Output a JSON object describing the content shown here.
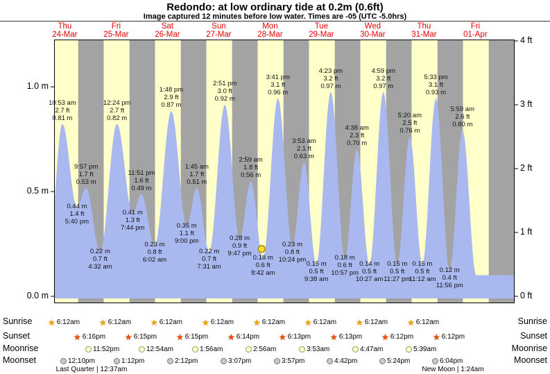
{
  "colors": {
    "night_band": "#a3a3a3",
    "day_band": "#ffffc9",
    "water": "#a9b8ef",
    "marker_fill": "#ffd928",
    "marker_stroke": "#9c8a00",
    "day_label": "#e60000"
  },
  "chart_data": {
    "type": "area",
    "title": "Redondo: at low  ordinary tide at 0.2m (0.6ft)",
    "subtitle": "Image captured 12 minutes before low water. Times are -05 (UTC -5.0hrs)",
    "ylim_ft": [
      0,
      4
    ],
    "unit_left": "m",
    "unit_right": "ft",
    "grid": "day-night bands, legend none",
    "days": [
      {
        "weekday": "Thu",
        "date": "24-Mar"
      },
      {
        "weekday": "Fri",
        "date": "25-Mar"
      },
      {
        "weekday": "Sat",
        "date": "26-Mar"
      },
      {
        "weekday": "Sun",
        "date": "27-Mar"
      },
      {
        "weekday": "Mon",
        "date": "28-Mar"
      },
      {
        "weekday": "Tue",
        "date": "29-Mar"
      },
      {
        "weekday": "Wed",
        "date": "30-Mar"
      },
      {
        "weekday": "Thu",
        "date": "31-Mar"
      },
      {
        "weekday": "Fri",
        "date": "01-Apr"
      }
    ],
    "axis_left": [
      {
        "label": "0.0 m",
        "ft": 0
      },
      {
        "label": "0.5 m",
        "ft": 1.6404
      },
      {
        "label": "1.0 m",
        "ft": 3.2808
      }
    ],
    "axis_right": [
      {
        "label": "0 ft",
        "ft": 0
      },
      {
        "label": "1 ft",
        "ft": 1
      },
      {
        "label": "2 ft",
        "ft": 2
      },
      {
        "label": "3 ft",
        "ft": 3
      },
      {
        "label": "4 ft",
        "ft": 4
      }
    ],
    "tide_events": [
      {
        "day": 0,
        "t": 10.88,
        "kind": "high",
        "ft": 2.7,
        "lines": [
          "10:53 am",
          "2.7 ft",
          "0.81 m"
        ]
      },
      {
        "day": 0,
        "t": 17.67,
        "kind": "low",
        "ft": 1.4,
        "lines": [
          "0.44 m",
          "1.4 ft",
          "5:40 pm"
        ]
      },
      {
        "day": 0,
        "t": 21.95,
        "kind": "high",
        "ft": 1.7,
        "lines": [
          "9:57 pm",
          "1.7 ft",
          "0.53 m"
        ]
      },
      {
        "day": 1,
        "t": 4.53,
        "kind": "low",
        "ft": 0.7,
        "lines": [
          "0.22 m",
          "0.7 ft",
          "4:32 am"
        ]
      },
      {
        "day": 1,
        "t": 12.4,
        "kind": "high",
        "ft": 2.7,
        "lines": [
          "12:24 pm",
          "2.7 ft",
          "0.82 m"
        ]
      },
      {
        "day": 1,
        "t": 19.73,
        "kind": "low",
        "ft": 1.3,
        "lines": [
          "0.41 m",
          "1.3 ft",
          "7:44 pm"
        ]
      },
      {
        "day": 1,
        "t": 23.85,
        "kind": "high",
        "ft": 1.6,
        "lines": [
          "11:51 pm",
          "1.6 ft",
          "0.49 m"
        ]
      },
      {
        "day": 2,
        "t": 6.03,
        "kind": "low",
        "ft": 0.8,
        "lines": [
          "0.23 m",
          "0.8 ft",
          "6:02 am"
        ]
      },
      {
        "day": 2,
        "t": 13.8,
        "kind": "high",
        "ft": 2.9,
        "lines": [
          "1:48 pm",
          "2.9 ft",
          "0.87 m"
        ]
      },
      {
        "day": 2,
        "t": 21.0,
        "kind": "low",
        "ft": 1.1,
        "lines": [
          "0.35 m",
          "1.1 ft",
          "9:00 pm"
        ]
      },
      {
        "day": 3,
        "t": 1.75,
        "kind": "high",
        "ft": 1.7,
        "lines": [
          "1:45 am",
          "1.7 ft",
          "0.51 m"
        ]
      },
      {
        "day": 3,
        "t": 7.52,
        "kind": "low",
        "ft": 0.7,
        "lines": [
          "0.22 m",
          "0.7 ft",
          "7:31 am"
        ]
      },
      {
        "day": 3,
        "t": 14.85,
        "kind": "high",
        "ft": 3.0,
        "lines": [
          "2:51 pm",
          "3.0 ft",
          "0.92 m"
        ]
      },
      {
        "day": 3,
        "t": 21.78,
        "kind": "low",
        "ft": 0.9,
        "lines": [
          "0.28 m",
          "0.9 ft",
          "9:47 pm"
        ]
      },
      {
        "day": 4,
        "t": 2.98,
        "kind": "high",
        "ft": 1.8,
        "lines": [
          "2:59 am",
          "1.8 ft",
          "0.56 m"
        ]
      },
      {
        "day": 4,
        "t": 8.7,
        "kind": "low",
        "ft": 0.6,
        "marker": true,
        "lines": [
          "0.18 m",
          "0.6 ft",
          "8:42 am"
        ]
      },
      {
        "day": 4,
        "t": 15.68,
        "kind": "high",
        "ft": 3.1,
        "lines": [
          "3:41 pm",
          "3.1 ft",
          "0.96 m"
        ]
      },
      {
        "day": 4,
        "t": 22.4,
        "kind": "low",
        "ft": 0.8,
        "lines": [
          "0.23 m",
          "0.8 ft",
          "10:24 pm"
        ]
      },
      {
        "day": 5,
        "t": 3.88,
        "kind": "high",
        "ft": 2.1,
        "lines": [
          "3:53 am",
          "2.1 ft",
          "0.63 m"
        ]
      },
      {
        "day": 5,
        "t": 9.63,
        "kind": "low",
        "ft": 0.5,
        "lines": [
          "0.15 m",
          "0.5 ft",
          "9:38 am"
        ]
      },
      {
        "day": 5,
        "t": 16.38,
        "kind": "high",
        "ft": 3.2,
        "lines": [
          "4:23 pm",
          "3.2 ft",
          "0.97 m"
        ]
      },
      {
        "day": 5,
        "t": 22.95,
        "kind": "low",
        "ft": 0.6,
        "lines": [
          "0.18 m",
          "0.6 ft",
          "10:57 pm"
        ]
      },
      {
        "day": 6,
        "t": 4.63,
        "kind": "high",
        "ft": 2.3,
        "lines": [
          "4:38 am",
          "2.3 ft",
          "0.70 m"
        ]
      },
      {
        "day": 6,
        "t": 10.45,
        "kind": "low",
        "ft": 0.5,
        "lines": [
          "0.14 m",
          "0.5 ft",
          "10:27 am"
        ]
      },
      {
        "day": 6,
        "t": 16.98,
        "kind": "high",
        "ft": 3.2,
        "lines": [
          "4:59 pm",
          "3.2 ft",
          "0.97 m"
        ]
      },
      {
        "day": 6,
        "t": 23.45,
        "kind": "low",
        "ft": 0.5,
        "lines": [
          "0.15 m",
          "0.5 ft",
          "11:27 pm"
        ]
      },
      {
        "day": 7,
        "t": 5.33,
        "kind": "high",
        "ft": 2.5,
        "lines": [
          "5:20 am",
          "2.5 ft",
          "0.76 m"
        ]
      },
      {
        "day": 7,
        "t": 11.2,
        "kind": "low",
        "ft": 0.5,
        "lines": [
          "0.15 m",
          "0.5 ft",
          "11:12 am"
        ]
      },
      {
        "day": 7,
        "t": 17.55,
        "kind": "high",
        "ft": 3.1,
        "lines": [
          "5:33 pm",
          "3.1 ft",
          "0.93 m"
        ]
      },
      {
        "day": 7,
        "t": 23.93,
        "kind": "low",
        "ft": 0.4,
        "lines": [
          "0.12 m",
          "0.4 ft",
          "11:56 pm"
        ]
      },
      {
        "day": 8,
        "t": 5.98,
        "kind": "high",
        "ft": 2.6,
        "lines": [
          "5:59 am",
          "2.6 ft",
          "0.80 m"
        ]
      }
    ],
    "edge_lead": {
      "day": 0,
      "t": 4.5,
      "ft": 0.7
    },
    "edge_tail": [
      {
        "day": 8,
        "t": 12.4,
        "ft": 0.33
      },
      {
        "day": 8,
        "t": 30.5,
        "ft": 0.33
      }
    ]
  },
  "sun_moon": {
    "rows": [
      {
        "key": "sunrise",
        "label": "Sunrise",
        "icon": "sunrise-star",
        "entries": [
          {
            "day": 0,
            "t": 6.2,
            "time": "6:12am"
          },
          {
            "day": 1,
            "t": 6.2,
            "time": "6:12am"
          },
          {
            "day": 2,
            "t": 6.2,
            "time": "6:12am"
          },
          {
            "day": 3,
            "t": 6.2,
            "time": "6:12am"
          },
          {
            "day": 4,
            "t": 6.2,
            "time": "6:12am"
          },
          {
            "day": 5,
            "t": 6.2,
            "time": "6:12am"
          },
          {
            "day": 6,
            "t": 6.2,
            "time": "6:12am"
          },
          {
            "day": 7,
            "t": 6.2,
            "time": "6:12am"
          }
        ]
      },
      {
        "key": "sunset",
        "label": "Sunset",
        "icon": "sunset-star",
        "entries": [
          {
            "day": 0,
            "t": 18.27,
            "time": "6:16pm"
          },
          {
            "day": 1,
            "t": 18.25,
            "time": "6:15pm"
          },
          {
            "day": 2,
            "t": 18.25,
            "time": "6:15pm"
          },
          {
            "day": 3,
            "t": 18.23,
            "time": "6:14pm"
          },
          {
            "day": 4,
            "t": 18.22,
            "time": "6:13pm"
          },
          {
            "day": 5,
            "t": 18.22,
            "time": "6:13pm"
          },
          {
            "day": 6,
            "t": 18.2,
            "time": "6:12pm"
          },
          {
            "day": 7,
            "t": 18.2,
            "time": "6:12pm"
          }
        ]
      },
      {
        "key": "moonrise",
        "label": "Moonrise",
        "icon": "moonrise-moon",
        "entries": [
          {
            "day": 0,
            "t": 23.87,
            "time": "11:52pm"
          },
          {
            "day": 2,
            "t": 0.9,
            "time": "12:54am"
          },
          {
            "day": 3,
            "t": 1.93,
            "time": "1:56am"
          },
          {
            "day": 4,
            "t": 2.93,
            "time": "2:56am"
          },
          {
            "day": 5,
            "t": 3.88,
            "time": "3:53am"
          },
          {
            "day": 6,
            "t": 4.78,
            "time": "4:47am"
          },
          {
            "day": 7,
            "t": 5.65,
            "time": "5:39am"
          }
        ]
      },
      {
        "key": "moonset",
        "label": "Moonset",
        "icon": "moonset-moon",
        "entries": [
          {
            "day": 0,
            "t": 12.17,
            "time": "12:10pm"
          },
          {
            "day": 1,
            "t": 13.2,
            "time": "1:12pm"
          },
          {
            "day": 2,
            "t": 14.2,
            "time": "2:12pm"
          },
          {
            "day": 3,
            "t": 15.12,
            "time": "3:07pm"
          },
          {
            "day": 4,
            "t": 15.95,
            "time": "3:57pm"
          },
          {
            "day": 5,
            "t": 16.7,
            "time": "4:42pm"
          },
          {
            "day": 6,
            "t": 17.4,
            "time": "5:24pm"
          },
          {
            "day": 7,
            "t": 18.07,
            "time": "6:04pm"
          }
        ]
      }
    ],
    "phases": [
      {
        "label": "Last Quarter | 12:37am",
        "day": 1,
        "t": 0.62
      },
      {
        "label": "New Moon | 1:24am",
        "day": 8,
        "t": 1.4
      }
    ]
  }
}
